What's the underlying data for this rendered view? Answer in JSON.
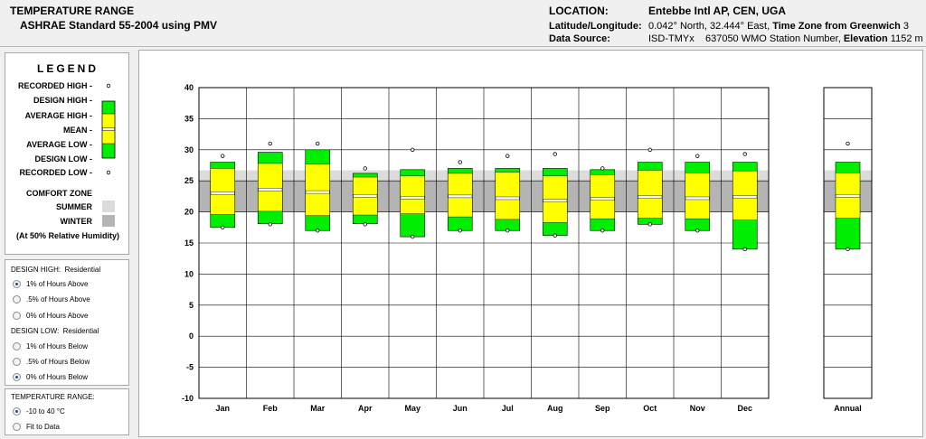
{
  "header": {
    "title": "TEMPERATURE RANGE",
    "subtitle": "ASHRAE Standard 55-2004 using PMV",
    "location_label": "LOCATION:",
    "location_name": "Entebbe Intl AP, CEN, UGA",
    "latlon_label": "Latitude/Longitude:",
    "latlon_value": "0.042° North, 32.444° East,",
    "timezone_label": "Time Zone from Greenwich",
    "timezone_value": "3",
    "source_label": "Data Source:",
    "source_value": "ISD-TMYx",
    "station_value": "637050 WMO Station Number,",
    "elevation_label": "Elevation",
    "elevation_value": "1152 m"
  },
  "legend": {
    "title": "LEGEND",
    "recorded_high": "RECORDED HIGH -",
    "design_high": "DESIGN HIGH -",
    "average_high": "AVERAGE HIGH -",
    "mean": "MEAN -",
    "average_low": "AVERAGE LOW -",
    "design_low": "DESIGN LOW -",
    "recorded_low": "RECORDED LOW -",
    "comfort_zone": "COMFORT ZONE",
    "summer": "SUMMER",
    "winter": "WINTER",
    "rh_note": "(At 50% Relative Humidity)"
  },
  "options": {
    "design_high_label": "DESIGN HIGH:",
    "design_high_mode": "Residential",
    "design_high_opts": [
      "1% of Hours Above",
      ".5% of Hours Above",
      "0% of Hours Above"
    ],
    "design_low_label": "DESIGN LOW:",
    "design_low_mode": "Residential",
    "design_low_opts": [
      "1% of Hours Below",
      ".5% of Hours Below",
      "0% of Hours Below"
    ],
    "range_label": "TEMPERATURE RANGE:",
    "range_opts": [
      "-10 to 40 °C",
      "Fit to Data"
    ]
  },
  "colors": {
    "green": "#00ee00",
    "yellow": "#ffff00",
    "summer_zone": "#dcdcdc",
    "winter_zone": "#b4b4b4"
  },
  "chart_data": {
    "type": "bar",
    "ylim": [
      -10,
      40
    ],
    "yticks": [
      -10,
      -5,
      0,
      5,
      10,
      15,
      20,
      25,
      30,
      35,
      40
    ],
    "comfort_zone": {
      "summer": [
        20.0,
        26.7
      ],
      "winter": [
        20.0,
        25.0
      ]
    },
    "categories": [
      "Jan",
      "Feb",
      "Mar",
      "Apr",
      "May",
      "Jun",
      "Jul",
      "Aug",
      "Sep",
      "Oct",
      "Nov",
      "Dec"
    ],
    "annual_label": "Annual",
    "series": [
      {
        "recorded_high": [
          29.0,
          31.0,
          31.0,
          27.0,
          30.0,
          28.0,
          29.0,
          29.3,
          27.0,
          30.0,
          29.0,
          29.3
        ],
        "design_high": [
          28.0,
          29.6,
          30.0,
          26.2,
          26.8,
          27.0,
          27.0,
          27.0,
          26.8,
          28.0,
          28.0,
          28.0
        ],
        "average_high": [
          27.0,
          27.8,
          27.7,
          25.6,
          25.8,
          26.2,
          26.4,
          25.8,
          26.0,
          26.7,
          26.3,
          26.6
        ],
        "mean": [
          23.0,
          23.6,
          23.2,
          22.6,
          22.3,
          22.5,
          22.2,
          21.8,
          22.1,
          22.4,
          22.2,
          22.4
        ],
        "average_low": [
          19.6,
          20.1,
          19.4,
          19.5,
          19.7,
          19.2,
          18.8,
          18.3,
          18.9,
          19.0,
          18.9,
          18.7
        ],
        "design_low": [
          17.5,
          18.1,
          17.0,
          18.1,
          16.0,
          17.0,
          17.0,
          16.2,
          17.0,
          18.0,
          17.0,
          14.0
        ],
        "recorded_low": [
          17.5,
          18.0,
          17.0,
          18.0,
          16.0,
          17.0,
          17.0,
          16.2,
          17.0,
          18.0,
          17.0,
          14.0
        ]
      }
    ],
    "annual": {
      "recorded_high": 31.0,
      "design_high": 28.0,
      "average_high": 26.3,
      "mean": 22.6,
      "average_low": 19.0,
      "design_low": 14.0,
      "recorded_low": 14.0
    }
  }
}
